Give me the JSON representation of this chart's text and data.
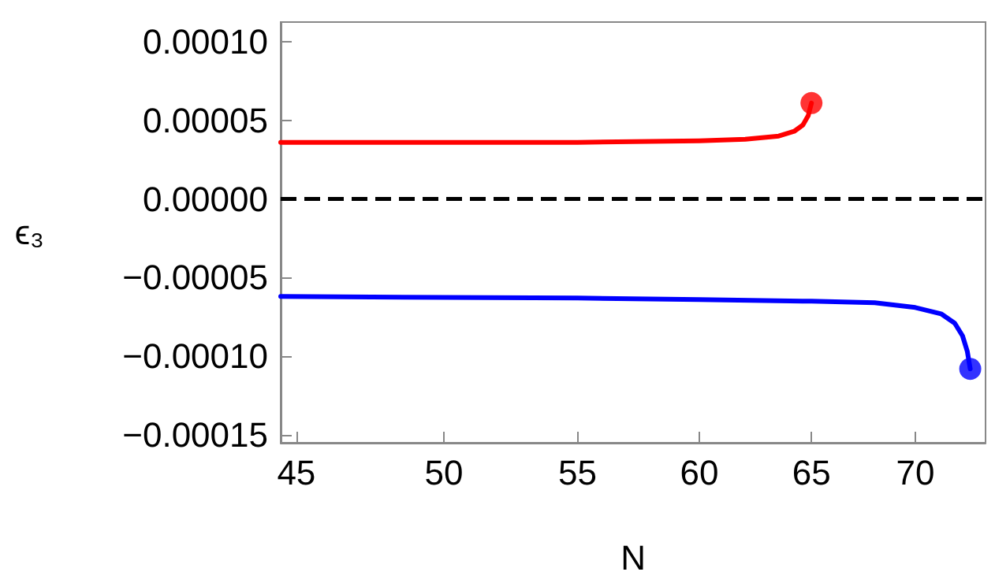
{
  "chart_data": {
    "type": "line",
    "xlabel": "N",
    "ylabel": "ϵ₃",
    "log": "x",
    "grid": false,
    "line_style": "solid",
    "marker": "none",
    "xlim": [
      44.5,
      73.6
    ],
    "xticks": [
      45,
      50,
      55,
      60,
      65,
      70
    ],
    "ylim": [
      -0.000155,
      0.0001125
    ],
    "yticks": [
      {
        "value": -0.00015,
        "label": "−0.00015"
      },
      {
        "value": -0.0001,
        "label": "−0.00010"
      },
      {
        "value": -5e-05,
        "label": "−0.00005"
      },
      {
        "value": 0,
        "label": "0.00000"
      },
      {
        "value": 5e-05,
        "label": "0.00005"
      },
      {
        "value": 0.0001,
        "label": "0.00010"
      }
    ],
    "ref_lines": [
      {
        "axis": "y",
        "value": 0,
        "color": "#000000",
        "line_style": "dashed"
      }
    ],
    "series": [
      {
        "color": "#ff0000",
        "x": [
          44.5,
          50,
          55,
          60,
          62,
          63.5,
          64.2,
          64.6,
          64.85,
          65.0
        ],
        "values": [
          3.6e-05,
          3.6e-05,
          3.6e-05,
          3.7e-05,
          3.8e-05,
          4e-05,
          4.3e-05,
          4.7e-05,
          5.3e-05,
          6.1e-05
        ]
      },
      {
        "color": "#0000ff",
        "x": [
          44.5,
          55,
          60,
          65,
          68,
          70,
          71.3,
          72,
          72.4,
          72.65,
          72.8
        ],
        "values": [
          -6.2e-05,
          -6.3e-05,
          -6.4e-05,
          -6.5e-05,
          -6.6e-05,
          -6.9e-05,
          -7.3e-05,
          -7.9e-05,
          -8.7e-05,
          -9.7e-05,
          -0.000108
        ]
      },
      {
        "type": "scatter",
        "marker": "circle",
        "color": "#ff0000",
        "x": [
          65.0
        ],
        "values": [
          6.1e-05
        ]
      },
      {
        "type": "scatter",
        "marker": "circle",
        "color": "#0000ff",
        "x": [
          72.8
        ],
        "values": [
          -0.000108
        ]
      }
    ]
  }
}
